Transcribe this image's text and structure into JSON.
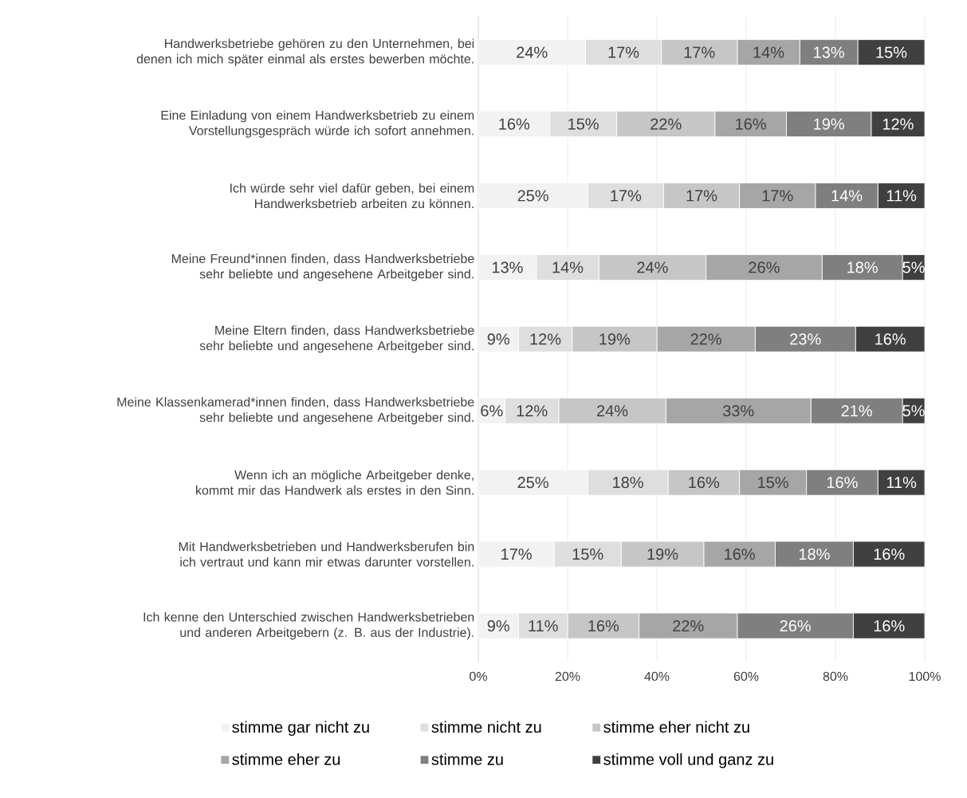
{
  "chart_data": {
    "type": "bar",
    "orientation": "horizontal",
    "stacked": true,
    "categories": [
      "Handwerksbetriebe gehören zu den Unternehmen, bei denen ich mich später einmal als erstes bewerben möchte.",
      "Eine Einladung von einem Handwerksbetrieb zu einem Vorstellungsgespräch würde ich sofort annehmen.",
      "Ich würde sehr viel dafür geben, bei einem Handwerksbetrieb arbeiten zu können.",
      "Meine Freund*innen finden, dass Handwerksbetriebe sehr beliebte und angesehene Arbeitgeber sind.",
      "Meine Eltern finden, dass Handwerksbetriebe sehr beliebte und angesehene Arbeitgeber sind.",
      "Meine Klassenkamerad*innen finden, dass Handwerksbetriebe sehr beliebte und angesehene Arbeitgeber sind.",
      "Wenn ich an mögliche Arbeitgeber denke, kommt mir das Handwerk als erstes in den Sinn.",
      "Mit Handwerksbetrieben und Handwerksberufen bin ich vertraut und kann mir etwas darunter vorstellen.",
      "Ich kenne den Unterschied zwischen Handwerksbetrieben und anderen Arbeitgebern (z. B. aus der Industrie)."
    ],
    "series": [
      {
        "name": "stimme gar nicht zu",
        "color": "#f2f2f2",
        "values": [
          24,
          16,
          24.5,
          13,
          9,
          6,
          24.5,
          17,
          9
        ],
        "value_labels": [
          "24%",
          "16%",
          "25%",
          "13%",
          "9%",
          "6%",
          "25%",
          "17%",
          "9%"
        ]
      },
      {
        "name": "stimme nicht zu",
        "color": "#dedede",
        "values": [
          17,
          15,
          17,
          14,
          12,
          12,
          18,
          15,
          11
        ],
        "value_labels": [
          "17%",
          "15%",
          "17%",
          "14%",
          "12%",
          "12%",
          "18%",
          "15%",
          "11%"
        ]
      },
      {
        "name": "stimme eher nicht zu",
        "color": "#c6c6c6",
        "values": [
          17,
          22,
          17,
          24,
          19,
          24,
          16,
          18.5,
          16
        ],
        "value_labels": [
          "17%",
          "22%",
          "17%",
          "24%",
          "19%",
          "24%",
          "16%",
          "19%",
          "16%"
        ]
      },
      {
        "name": "stimme eher zu",
        "color": "#a6a6a6",
        "values": [
          14,
          16,
          17,
          26,
          22,
          32.5,
          15,
          16,
          22
        ],
        "value_labels": [
          "14%",
          "16%",
          "17%",
          "26%",
          "22%",
          "33%",
          "15%",
          "16%",
          "22%"
        ]
      },
      {
        "name": "stimme zu",
        "color": "#7f7f7f",
        "values": [
          13,
          19,
          14,
          18,
          22.5,
          20.5,
          16,
          17.5,
          26
        ],
        "value_labels": [
          "13%",
          "19%",
          "14%",
          "18%",
          "23%",
          "21%",
          "16%",
          "18%",
          "26%"
        ]
      },
      {
        "name": "stimme voll und ganz zu",
        "color": "#404040",
        "values": [
          15,
          12,
          10.5,
          5,
          15.5,
          5,
          10.5,
          16,
          16
        ],
        "value_labels": [
          "15%",
          "12%",
          "11%",
          "5%",
          "16%",
          "5%",
          "11%",
          "16%",
          "16%"
        ]
      }
    ],
    "xlim": [
      0,
      100
    ],
    "xticks": [
      {
        "value": 0,
        "label": "0%"
      },
      {
        "value": 20,
        "label": "20%"
      },
      {
        "value": 40,
        "label": "40%"
      },
      {
        "value": 60,
        "label": "60%"
      },
      {
        "value": 80,
        "label": "80%"
      },
      {
        "value": 100,
        "label": "100%"
      }
    ],
    "grid": "x",
    "legend": "bottom"
  }
}
